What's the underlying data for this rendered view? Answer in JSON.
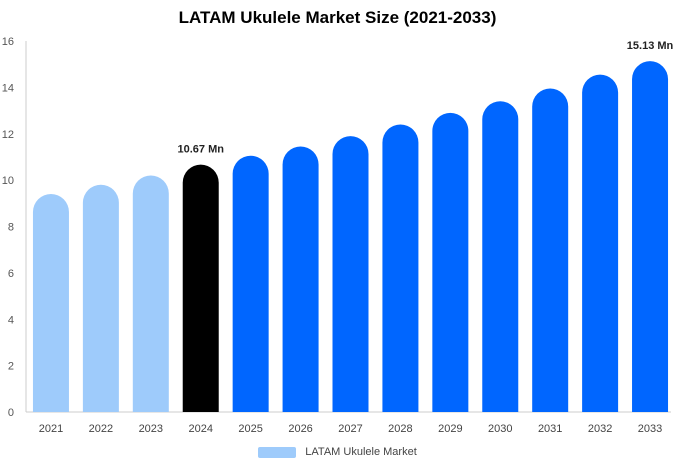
{
  "chart_data": {
    "type": "bar",
    "title": "LATAM Ukulele Market Size (2021-2033)",
    "categories": [
      "2021",
      "2022",
      "2023",
      "2024",
      "2025",
      "2026",
      "2027",
      "2028",
      "2029",
      "2030",
      "2031",
      "2032",
      "2033"
    ],
    "series": [
      {
        "name": "LATAM Ukulele Market",
        "values": [
          9.4,
          9.8,
          10.2,
          10.67,
          11.05,
          11.45,
          11.9,
          12.4,
          12.9,
          13.4,
          13.95,
          14.55,
          15.13
        ]
      }
    ],
    "ylim": [
      0,
      16
    ],
    "yticks": [
      0,
      2,
      4,
      6,
      8,
      10,
      12,
      14,
      16
    ],
    "grid": false,
    "legend_position": "bottom",
    "data_labels": [
      {
        "category": "2024",
        "text": "10.67 Mn"
      },
      {
        "category": "2033",
        "text": "15.13 Mn"
      }
    ],
    "bar_colors": {
      "historical": "#9ecbfb",
      "base_year": "#000000",
      "forecast": "#0066ff"
    },
    "color_groups": [
      "historical",
      "historical",
      "historical",
      "base_year",
      "forecast",
      "forecast",
      "forecast",
      "forecast",
      "forecast",
      "forecast",
      "forecast",
      "forecast",
      "forecast"
    ],
    "axis_color": "#cccccc"
  }
}
